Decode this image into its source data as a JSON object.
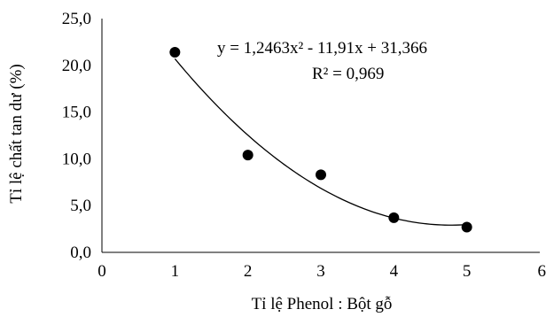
{
  "chart_data": {
    "type": "scatter",
    "title": "",
    "xlabel": "Tỉ lệ Phenol : Bột gỗ",
    "ylabel": "Tỉ lệ chất tan dư (%)",
    "xlim": [
      0,
      6
    ],
    "ylim": [
      0,
      25
    ],
    "x_ticks": [
      0,
      1,
      2,
      3,
      4,
      5,
      6
    ],
    "y_ticks": [
      0,
      5,
      10,
      15,
      20,
      25
    ],
    "x_tick_labels": [
      "0",
      "1",
      "2",
      "3",
      "4",
      "5",
      "6"
    ],
    "y_tick_labels": [
      "0,0",
      "5,0",
      "10,0",
      "15,0",
      "20,0",
      "25,0"
    ],
    "grid": "none",
    "series": [
      {
        "x": [
          1,
          2,
          3,
          4,
          5
        ],
        "y": [
          21.4,
          10.4,
          8.3,
          3.7,
          2.7
        ]
      }
    ],
    "trendline": {
      "type": "polynomial",
      "order": 2,
      "coefficients": [
        1.2463,
        -11.91,
        31.366
      ],
      "x_range": [
        1,
        5
      ]
    },
    "annotations": {
      "equation": "y = 1,2463x² - 11,91x + 31,366",
      "r_squared": "R² = 0,969"
    },
    "colors": {
      "marker": "#000000",
      "axis": "#000000",
      "trendline": "#000000"
    }
  }
}
